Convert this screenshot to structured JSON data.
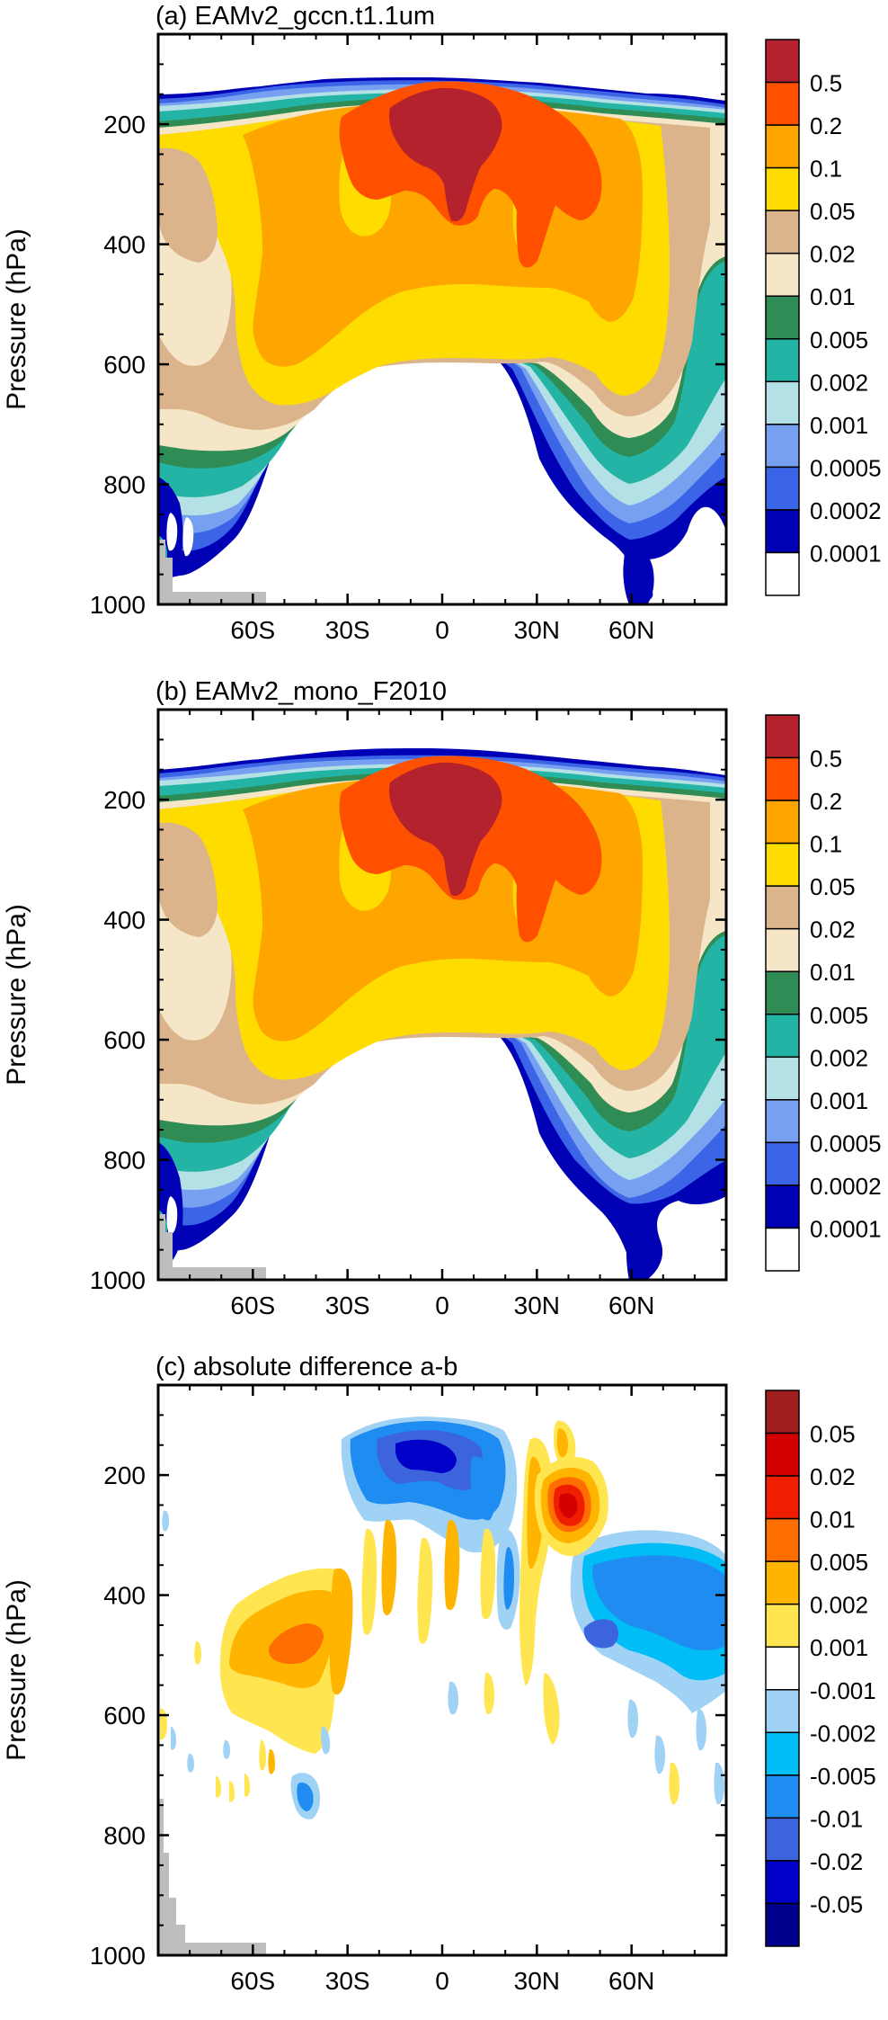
{
  "chart_data": [
    {
      "type": "heatmap",
      "title": "(a) EAMv2_gccn.t1.1um",
      "ylabel": "Pressure (hPa)",
      "xlabel": "",
      "y_scale": "linear",
      "y_reversed": true,
      "y_ticks": [
        "200",
        "400",
        "600",
        "800",
        "1000"
      ],
      "x_ticks": [
        "60S",
        "30S",
        "0",
        "30N",
        "60N"
      ],
      "x_tick_values": [
        -60,
        -30,
        0,
        30,
        60
      ],
      "y_tick_values": [
        200,
        400,
        600,
        800,
        1000
      ],
      "xlim": [
        -90,
        90
      ],
      "ylim": [
        1000,
        50
      ],
      "levels": [
        "0.0001",
        "0.0002",
        "0.0005",
        "0.001",
        "0.002",
        "0.005",
        "0.01",
        "0.02",
        "0.05",
        "0.1",
        "0.2",
        "0.5"
      ],
      "level_values": [
        0.0001,
        0.0002,
        0.0005,
        0.001,
        0.002,
        0.005,
        0.01,
        0.02,
        0.05,
        0.1,
        0.2,
        0.5
      ],
      "colors": [
        "#ffffff",
        "#0000b4",
        "#3c64e6",
        "#78a0f0",
        "#b4e1e6",
        "#23b4a5",
        "#2f8c55",
        "#f5e6c8",
        "#dcb48c",
        "#ffdc00",
        "#ffa500",
        "#ff5000",
        "#b4232d"
      ],
      "legend_position": "right"
    },
    {
      "type": "heatmap",
      "title": "(b) EAMv2_mono_F2010",
      "ylabel": "Pressure (hPa)",
      "xlabel": "",
      "y_scale": "linear",
      "y_reversed": true,
      "y_ticks": [
        "200",
        "400",
        "600",
        "800",
        "1000"
      ],
      "x_ticks": [
        "60S",
        "30S",
        "0",
        "30N",
        "60N"
      ],
      "x_tick_values": [
        -60,
        -30,
        0,
        30,
        60
      ],
      "y_tick_values": [
        200,
        400,
        600,
        800,
        1000
      ],
      "xlim": [
        -90,
        90
      ],
      "ylim": [
        1000,
        50
      ],
      "levels": [
        "0.0001",
        "0.0002",
        "0.0005",
        "0.001",
        "0.002",
        "0.005",
        "0.01",
        "0.02",
        "0.05",
        "0.1",
        "0.2",
        "0.5"
      ],
      "level_values": [
        0.0001,
        0.0002,
        0.0005,
        0.001,
        0.002,
        0.005,
        0.01,
        0.02,
        0.05,
        0.1,
        0.2,
        0.5
      ],
      "colors": [
        "#ffffff",
        "#0000b4",
        "#3c64e6",
        "#78a0f0",
        "#b4e1e6",
        "#23b4a5",
        "#2f8c55",
        "#f5e6c8",
        "#dcb48c",
        "#ffdc00",
        "#ffa500",
        "#ff5000",
        "#b4232d"
      ],
      "legend_position": "right"
    },
    {
      "type": "heatmap",
      "title": "(c) absolute difference a-b",
      "ylabel": "Pressure (hPa)",
      "xlabel": "",
      "y_scale": "linear",
      "y_reversed": true,
      "y_ticks": [
        "200",
        "400",
        "600",
        "800",
        "1000"
      ],
      "x_ticks": [
        "60S",
        "30S",
        "0",
        "30N",
        "60N"
      ],
      "x_tick_values": [
        -60,
        -30,
        0,
        30,
        60
      ],
      "y_tick_values": [
        200,
        400,
        600,
        800,
        1000
      ],
      "xlim": [
        -90,
        90
      ],
      "ylim": [
        1000,
        50
      ],
      "levels": [
        "-0.05",
        "-0.02",
        "-0.01",
        "-0.005",
        "-0.002",
        "-0.001",
        "0.001",
        "0.002",
        "0.005",
        "0.01",
        "0.02",
        "0.05"
      ],
      "level_values": [
        -0.05,
        -0.02,
        -0.01,
        -0.005,
        -0.002,
        -0.001,
        0.001,
        0.002,
        0.005,
        0.01,
        0.02,
        0.05
      ],
      "colors": [
        "#00008c",
        "#0000c8",
        "#3c64dc",
        "#1e8cf0",
        "#00bef5",
        "#a0d2f5",
        "#ffffff",
        "#ffe650",
        "#ffb400",
        "#ff6e00",
        "#f01e00",
        "#d20000",
        "#a01e1e"
      ],
      "legend_position": "right"
    }
  ]
}
